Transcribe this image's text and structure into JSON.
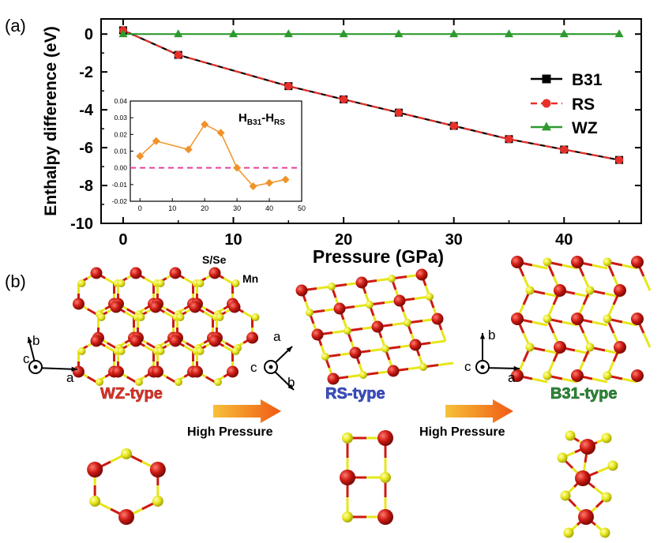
{
  "panel_a_label": "(a)",
  "panel_b_label": "(b)",
  "chart_data": [
    {
      "type": "line",
      "xlabel": "Pressure (GPa)",
      "ylabel": "Enthalpy difference (eV)",
      "xlim": [
        -2,
        47
      ],
      "ylim": [
        -10,
        0.8
      ],
      "xticks": [
        0,
        10,
        20,
        30,
        40
      ],
      "yticks": [
        0,
        -2,
        -4,
        -6,
        -8,
        -10
      ],
      "legend_position": "right",
      "series": [
        {
          "name": "B31",
          "color": "#000000",
          "marker": "square",
          "dash": "solid",
          "x": [
            0,
            5,
            15,
            20,
            25,
            30,
            35,
            40,
            45
          ],
          "y": [
            0.2,
            -1.1,
            -2.75,
            -3.45,
            -4.15,
            -4.85,
            -5.55,
            -6.1,
            -6.65
          ]
        },
        {
          "name": "RS",
          "color": "#e8302a",
          "marker": "circle",
          "dash": "dashed",
          "x": [
            0,
            5,
            15,
            20,
            25,
            30,
            35,
            40,
            45
          ],
          "y": [
            0.2,
            -1.1,
            -2.75,
            -3.45,
            -4.15,
            -4.85,
            -5.55,
            -6.1,
            -6.65
          ]
        },
        {
          "name": "WZ",
          "color": "#2e9a2e",
          "marker": "triangle",
          "dash": "solid",
          "x": [
            0,
            5,
            10,
            15,
            20,
            25,
            30,
            35,
            40,
            45
          ],
          "y": [
            0,
            0,
            0,
            0,
            0,
            0,
            0,
            0,
            0,
            0
          ]
        }
      ]
    },
    {
      "type": "line",
      "title_main": "H",
      "title_sub1": "B31",
      "title_mid": "-H",
      "title_sub2": "RS",
      "xlim": [
        -3,
        50
      ],
      "ylim": [
        -0.02,
        0.04
      ],
      "xticks": [
        0,
        10,
        20,
        30,
        40,
        50
      ],
      "yticks": [
        0.04,
        0.03,
        0.02,
        0.01,
        0.0,
        -0.01,
        -0.02
      ],
      "ytick_labels": [
        "0.04",
        "0.03",
        "0.02",
        "0.01",
        "0.00",
        "-0.01",
        "-0.02"
      ],
      "reference_line": {
        "y": 0,
        "color": "#e8409a"
      },
      "series": [
        {
          "color": "#f0922a",
          "marker": "diamond",
          "x": [
            0,
            5,
            15,
            20,
            25,
            30,
            35,
            40,
            45
          ],
          "y": [
            0.007,
            0.016,
            0.011,
            0.026,
            0.021,
            0.0,
            -0.011,
            -0.009,
            -0.007
          ]
        }
      ]
    }
  ],
  "structures": {
    "species_labels": {
      "anion": "S/Se",
      "cation": "Mn"
    },
    "phases": [
      {
        "name": "WZ-type",
        "color": "#e2342a"
      },
      {
        "name": "RS-type",
        "color": "#3f52c8"
      },
      {
        "name": "B31-type",
        "color": "#2e8a38"
      }
    ],
    "transition_label": "High Pressure",
    "axes": {
      "wz": {
        "up": "b",
        "right": "a",
        "out": "c"
      },
      "rs": {
        "up": "a",
        "down": "b",
        "out": "c"
      },
      "b31": {
        "up": "b",
        "right": "a",
        "out": "c"
      }
    },
    "colors": {
      "mn": "#cc1a12",
      "s": "#e6e61c",
      "bond_red": "#cc1a12",
      "bond_yellow": "#e6e61c",
      "arrow_start": "#f6c13a",
      "arrow_end": "#f05a14"
    }
  }
}
